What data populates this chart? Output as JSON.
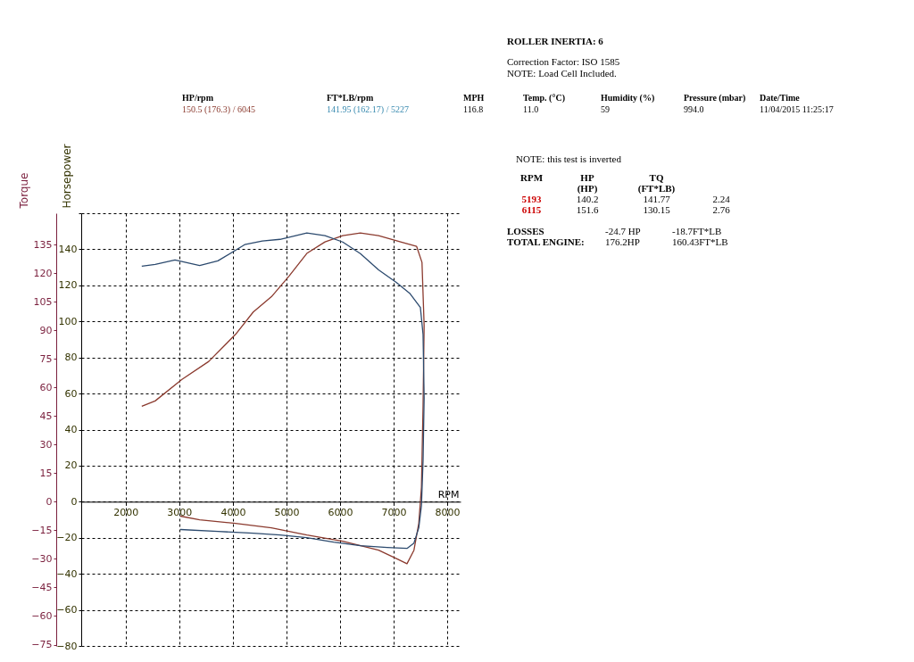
{
  "chart_data": {
    "type": "line",
    "xlabel": "RPM",
    "ylabel": "Horsepower",
    "y2label": "Torque",
    "xlim": [
      1170,
      8250
    ],
    "xticks": [
      2000,
      3000,
      4000,
      5000,
      6000,
      7000,
      8000
    ],
    "ylim": [
      -80,
      160
    ],
    "yticks": [
      -80,
      -60,
      -40,
      -20,
      0,
      20,
      40,
      60,
      80,
      100,
      120,
      140,
      {
        "value": 160,
        "label": null
      }
    ],
    "y2lim": [
      -75.7,
      151.4
    ],
    "y2ticks": [
      -75,
      -60,
      -45,
      -30,
      -15,
      0,
      15,
      30,
      45,
      60,
      75,
      90,
      105,
      120,
      135
    ],
    "grid": true,
    "series": [
      {
        "color": "#8b3a2e",
        "x": [
          2300,
          2550,
          3050,
          3550,
          4050,
          4380,
          4720,
          5050,
          5380,
          5720,
          6050,
          6380,
          6720,
          7130,
          7430,
          7530,
          7570,
          7550,
          7520,
          7470,
          7380,
          7250,
          7080,
          6720,
          6050,
          5380,
          4720,
          4050,
          3380,
          3020
        ],
        "values": [
          52.9,
          55.9,
          67.8,
          77.8,
          92.8,
          105.2,
          113.7,
          125.2,
          137.7,
          144.1,
          147.6,
          149.1,
          147.6,
          144.1,
          141.6,
          132.7,
          97.8,
          52.9,
          8,
          -12,
          -26.9,
          -34.4,
          -31.9,
          -26.9,
          -21.9,
          -18.5,
          -14.5,
          -12,
          -10,
          -8
        ]
      },
      {
        "color": "#2c4a6e",
        "axis": "y2",
        "x": [
          2300,
          2550,
          2920,
          3380,
          3720,
          4220,
          4550,
          4880,
          5380,
          5720,
          6050,
          6380,
          6720,
          7050,
          7300,
          7500,
          7550,
          7570,
          7550,
          7520,
          7470,
          7380,
          7250,
          6880,
          6380,
          5880,
          5380,
          4880,
          4380,
          3720,
          3020
        ],
        "values": [
          123.6,
          124.5,
          126.9,
          124,
          126.4,
          134.9,
          136.8,
          137.7,
          141,
          139.6,
          136.3,
          130.2,
          121.7,
          115.1,
          109.4,
          101.9,
          87.7,
          54.7,
          21.7,
          -1.9,
          -13.7,
          -21.7,
          -24.5,
          -24,
          -23.1,
          -21.2,
          -18.9,
          -17.5,
          -16.5,
          -15.6,
          -14.6
        ]
      }
    ],
    "annotations": [
      "ROLLER INERTIA:  6",
      "Correction Factor: ISO 1585",
      "NOTE: Load Cell Included.",
      "HP/rpm",
      "FT*LB/rpm",
      "MPH",
      "Temp. (°C)",
      "Humidity (%)",
      "Pressure (mbar)",
      "Date/Time",
      "150.5 (176.3) / 6045",
      "141.95 (162.17) / 5227",
      "116.8",
      "11.0",
      "59",
      "994.0",
      "11/04/2015 11:25:17",
      "NOTE: this test is inverted",
      "RPM",
      "HP\n(HP)",
      "TQ\n(FT*LB)",
      "5193",
      "140.2",
      "141.77",
      "2.24",
      "6115",
      "151.6",
      "130.15",
      "2.76",
      "LOSSES",
      "-24.7 HP",
      "-18.7FT*LB",
      "TOTAL ENGINE:",
      "176.2HP",
      "160.43FT*LB"
    ]
  }
}
